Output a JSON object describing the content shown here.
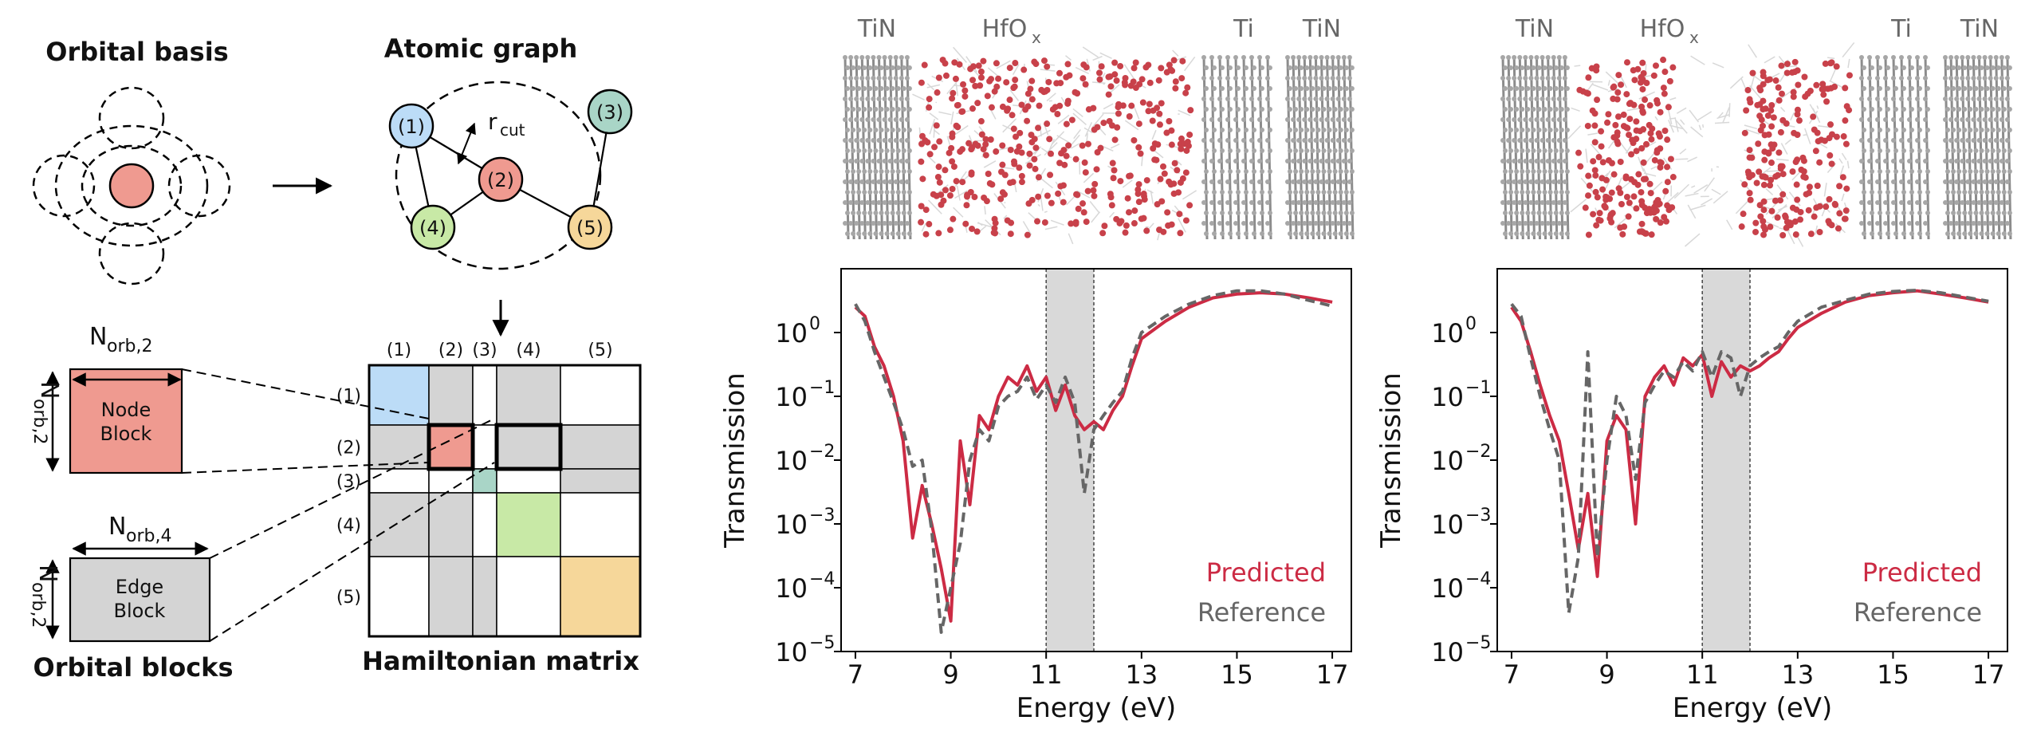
{
  "left_schematic": {
    "orbital_basis_title": "Orbital basis",
    "atomic_graph_title": "Atomic graph",
    "rcut_label": "r",
    "rcut_sub": "cut",
    "graph_nodes": [
      {
        "label": "(1)",
        "color": "#bcdcf7"
      },
      {
        "label": "(2)",
        "color": "#ef9a90"
      },
      {
        "label": "(3)",
        "color": "#a9d5c7"
      },
      {
        "label": "(4)",
        "color": "#c8e9a6"
      },
      {
        "label": "(5)",
        "color": "#f6d79a"
      }
    ],
    "matrix_labels": [
      "(1)",
      "(2)",
      "(3)",
      "(4)",
      "(5)"
    ],
    "matrix_title": "Hamiltonian matrix",
    "node_block": {
      "line1": "Node",
      "line2": "Block",
      "color": "#ef9a90"
    },
    "edge_block": {
      "line1": "Edge",
      "line2": "Block",
      "color": "#d4d4d4"
    },
    "n_orb_2_top": {
      "main": "N",
      "sub": "orb,2"
    },
    "n_orb_2_side": {
      "main": "N",
      "sub": "orb,2"
    },
    "n_orb_4_top": {
      "main": "N",
      "sub": "orb,4"
    },
    "n_orb_2_side_edge": {
      "main": "N",
      "sub": "orb,2"
    },
    "orbital_blocks_title": "Orbital blocks"
  },
  "structures": [
    {
      "labels": [
        "TiN",
        "HfO",
        "Ti",
        "TiN"
      ],
      "hfo_sub": "x"
    },
    {
      "labels": [
        "TiN",
        "HfO",
        "Ti",
        "TiN"
      ],
      "hfo_sub": "x"
    }
  ],
  "chart_data": [
    {
      "type": "line",
      "xlabel": "Energy (eV)",
      "ylabel": "Transmission",
      "y_scale": "log",
      "xlim": [
        6.7,
        17.4
      ],
      "ylim": [
        1e-05,
        10
      ],
      "x_ticks": [
        "7",
        "9",
        "11",
        "13",
        "15",
        "17"
      ],
      "y_ticks": [
        {
          "base": "10",
          "exp": "0"
        },
        {
          "base": "10",
          "exp": "−1"
        },
        {
          "base": "10",
          "exp": "−2"
        },
        {
          "base": "10",
          "exp": "−3"
        },
        {
          "base": "10",
          "exp": "−4"
        },
        {
          "base": "10",
          "exp": "−5"
        }
      ],
      "shaded_band": [
        11.0,
        12.0
      ],
      "legend": [
        {
          "name": "Predicted",
          "color": "#cc2b44"
        },
        {
          "name": "Reference",
          "color": "#666666"
        }
      ],
      "legend_position": "lower-right",
      "series": [
        {
          "name": "Predicted",
          "color": "#cc2b44",
          "x": [
            7.0,
            7.2,
            7.4,
            7.6,
            7.8,
            8.0,
            8.2,
            8.4,
            8.6,
            8.8,
            9.0,
            9.2,
            9.4,
            9.6,
            9.8,
            10.0,
            10.2,
            10.4,
            10.6,
            10.8,
            11.0,
            11.2,
            11.4,
            11.6,
            11.8,
            12.0,
            12.2,
            12.4,
            12.6,
            12.8,
            13.0,
            13.5,
            14.0,
            14.5,
            15.0,
            15.5,
            16.0,
            16.5,
            17.0
          ],
          "y": [
            2.5,
            1.8,
            0.6,
            0.3,
            0.1,
            0.02,
            0.0006,
            0.004,
            0.001,
            0.0002,
            3e-05,
            0.02,
            0.002,
            0.05,
            0.03,
            0.1,
            0.2,
            0.15,
            0.3,
            0.12,
            0.2,
            0.06,
            0.15,
            0.05,
            0.03,
            0.04,
            0.03,
            0.06,
            0.1,
            0.3,
            0.8,
            1.5,
            2.5,
            3.5,
            4.0,
            4.2,
            4.0,
            3.5,
            3.0
          ]
        },
        {
          "name": "Reference",
          "color": "#666666",
          "x": [
            7.0,
            7.2,
            7.4,
            7.6,
            7.8,
            8.0,
            8.2,
            8.4,
            8.6,
            8.8,
            9.0,
            9.2,
            9.4,
            9.6,
            9.8,
            10.0,
            10.2,
            10.4,
            10.6,
            10.8,
            11.0,
            11.2,
            11.4,
            11.6,
            11.8,
            12.0,
            12.2,
            12.4,
            12.6,
            12.8,
            13.0,
            13.5,
            14.0,
            14.5,
            15.0,
            15.5,
            16.0,
            16.5,
            17.0
          ],
          "y": [
            2.8,
            1.5,
            0.5,
            0.2,
            0.08,
            0.03,
            0.008,
            0.01,
            0.0008,
            2e-05,
            0.0001,
            0.0005,
            0.01,
            0.03,
            0.02,
            0.07,
            0.1,
            0.12,
            0.2,
            0.09,
            0.15,
            0.08,
            0.2,
            0.08,
            0.003,
            0.03,
            0.05,
            0.08,
            0.12,
            0.4,
            1.0,
            1.8,
            2.8,
            3.8,
            4.5,
            4.5,
            4.0,
            3.2,
            2.6
          ]
        }
      ]
    },
    {
      "type": "line",
      "xlabel": "Energy (eV)",
      "ylabel": "Transmission",
      "y_scale": "log",
      "xlim": [
        6.7,
        17.4
      ],
      "ylim": [
        1e-05,
        10
      ],
      "x_ticks": [
        "7",
        "9",
        "11",
        "13",
        "15",
        "17"
      ],
      "y_ticks": [
        {
          "base": "10",
          "exp": "0"
        },
        {
          "base": "10",
          "exp": "−1"
        },
        {
          "base": "10",
          "exp": "−2"
        },
        {
          "base": "10",
          "exp": "−3"
        },
        {
          "base": "10",
          "exp": "−4"
        },
        {
          "base": "10",
          "exp": "−5"
        }
      ],
      "shaded_band": [
        11.0,
        12.0
      ],
      "legend": [
        {
          "name": "Predicted",
          "color": "#cc2b44"
        },
        {
          "name": "Reference",
          "color": "#666666"
        }
      ],
      "legend_position": "lower-right",
      "series": [
        {
          "name": "Predicted",
          "color": "#cc2b44",
          "x": [
            7.0,
            7.2,
            7.4,
            7.6,
            7.8,
            8.0,
            8.2,
            8.4,
            8.6,
            8.8,
            9.0,
            9.2,
            9.4,
            9.6,
            9.8,
            10.0,
            10.2,
            10.4,
            10.6,
            10.8,
            11.0,
            11.2,
            11.4,
            11.6,
            11.8,
            12.0,
            12.2,
            12.4,
            12.6,
            12.8,
            13.0,
            13.5,
            14.0,
            14.5,
            15.0,
            15.5,
            16.0,
            16.5,
            17.0
          ],
          "y": [
            2.5,
            1.5,
            0.5,
            0.15,
            0.05,
            0.02,
            0.003,
            0.0004,
            0.003,
            0.00015,
            0.02,
            0.05,
            0.03,
            0.001,
            0.1,
            0.2,
            0.3,
            0.15,
            0.4,
            0.3,
            0.45,
            0.1,
            0.35,
            0.2,
            0.3,
            0.25,
            0.3,
            0.4,
            0.5,
            0.8,
            1.2,
            2.0,
            3.0,
            3.8,
            4.2,
            4.5,
            4.0,
            3.5,
            3.0
          ]
        },
        {
          "name": "Reference",
          "color": "#666666",
          "x": [
            7.0,
            7.2,
            7.4,
            7.6,
            7.8,
            8.0,
            8.2,
            8.4,
            8.6,
            8.8,
            9.0,
            9.2,
            9.4,
            9.6,
            9.8,
            10.0,
            10.2,
            10.4,
            10.6,
            10.8,
            11.0,
            11.2,
            11.4,
            11.6,
            11.8,
            12.0,
            12.2,
            12.4,
            12.6,
            12.8,
            13.0,
            13.5,
            14.0,
            14.5,
            15.0,
            15.5,
            16.0,
            16.5,
            17.0
          ],
          "y": [
            2.8,
            1.8,
            0.4,
            0.1,
            0.03,
            0.01,
            4e-05,
            0.0003,
            0.5,
            0.0003,
            0.01,
            0.1,
            0.05,
            0.005,
            0.08,
            0.15,
            0.25,
            0.2,
            0.35,
            0.25,
            0.5,
            0.2,
            0.5,
            0.4,
            0.1,
            0.3,
            0.4,
            0.5,
            0.6,
            1.0,
            1.5,
            2.5,
            3.2,
            4.0,
            4.4,
            4.6,
            4.2,
            3.6,
            3.1
          ]
        }
      ]
    }
  ]
}
